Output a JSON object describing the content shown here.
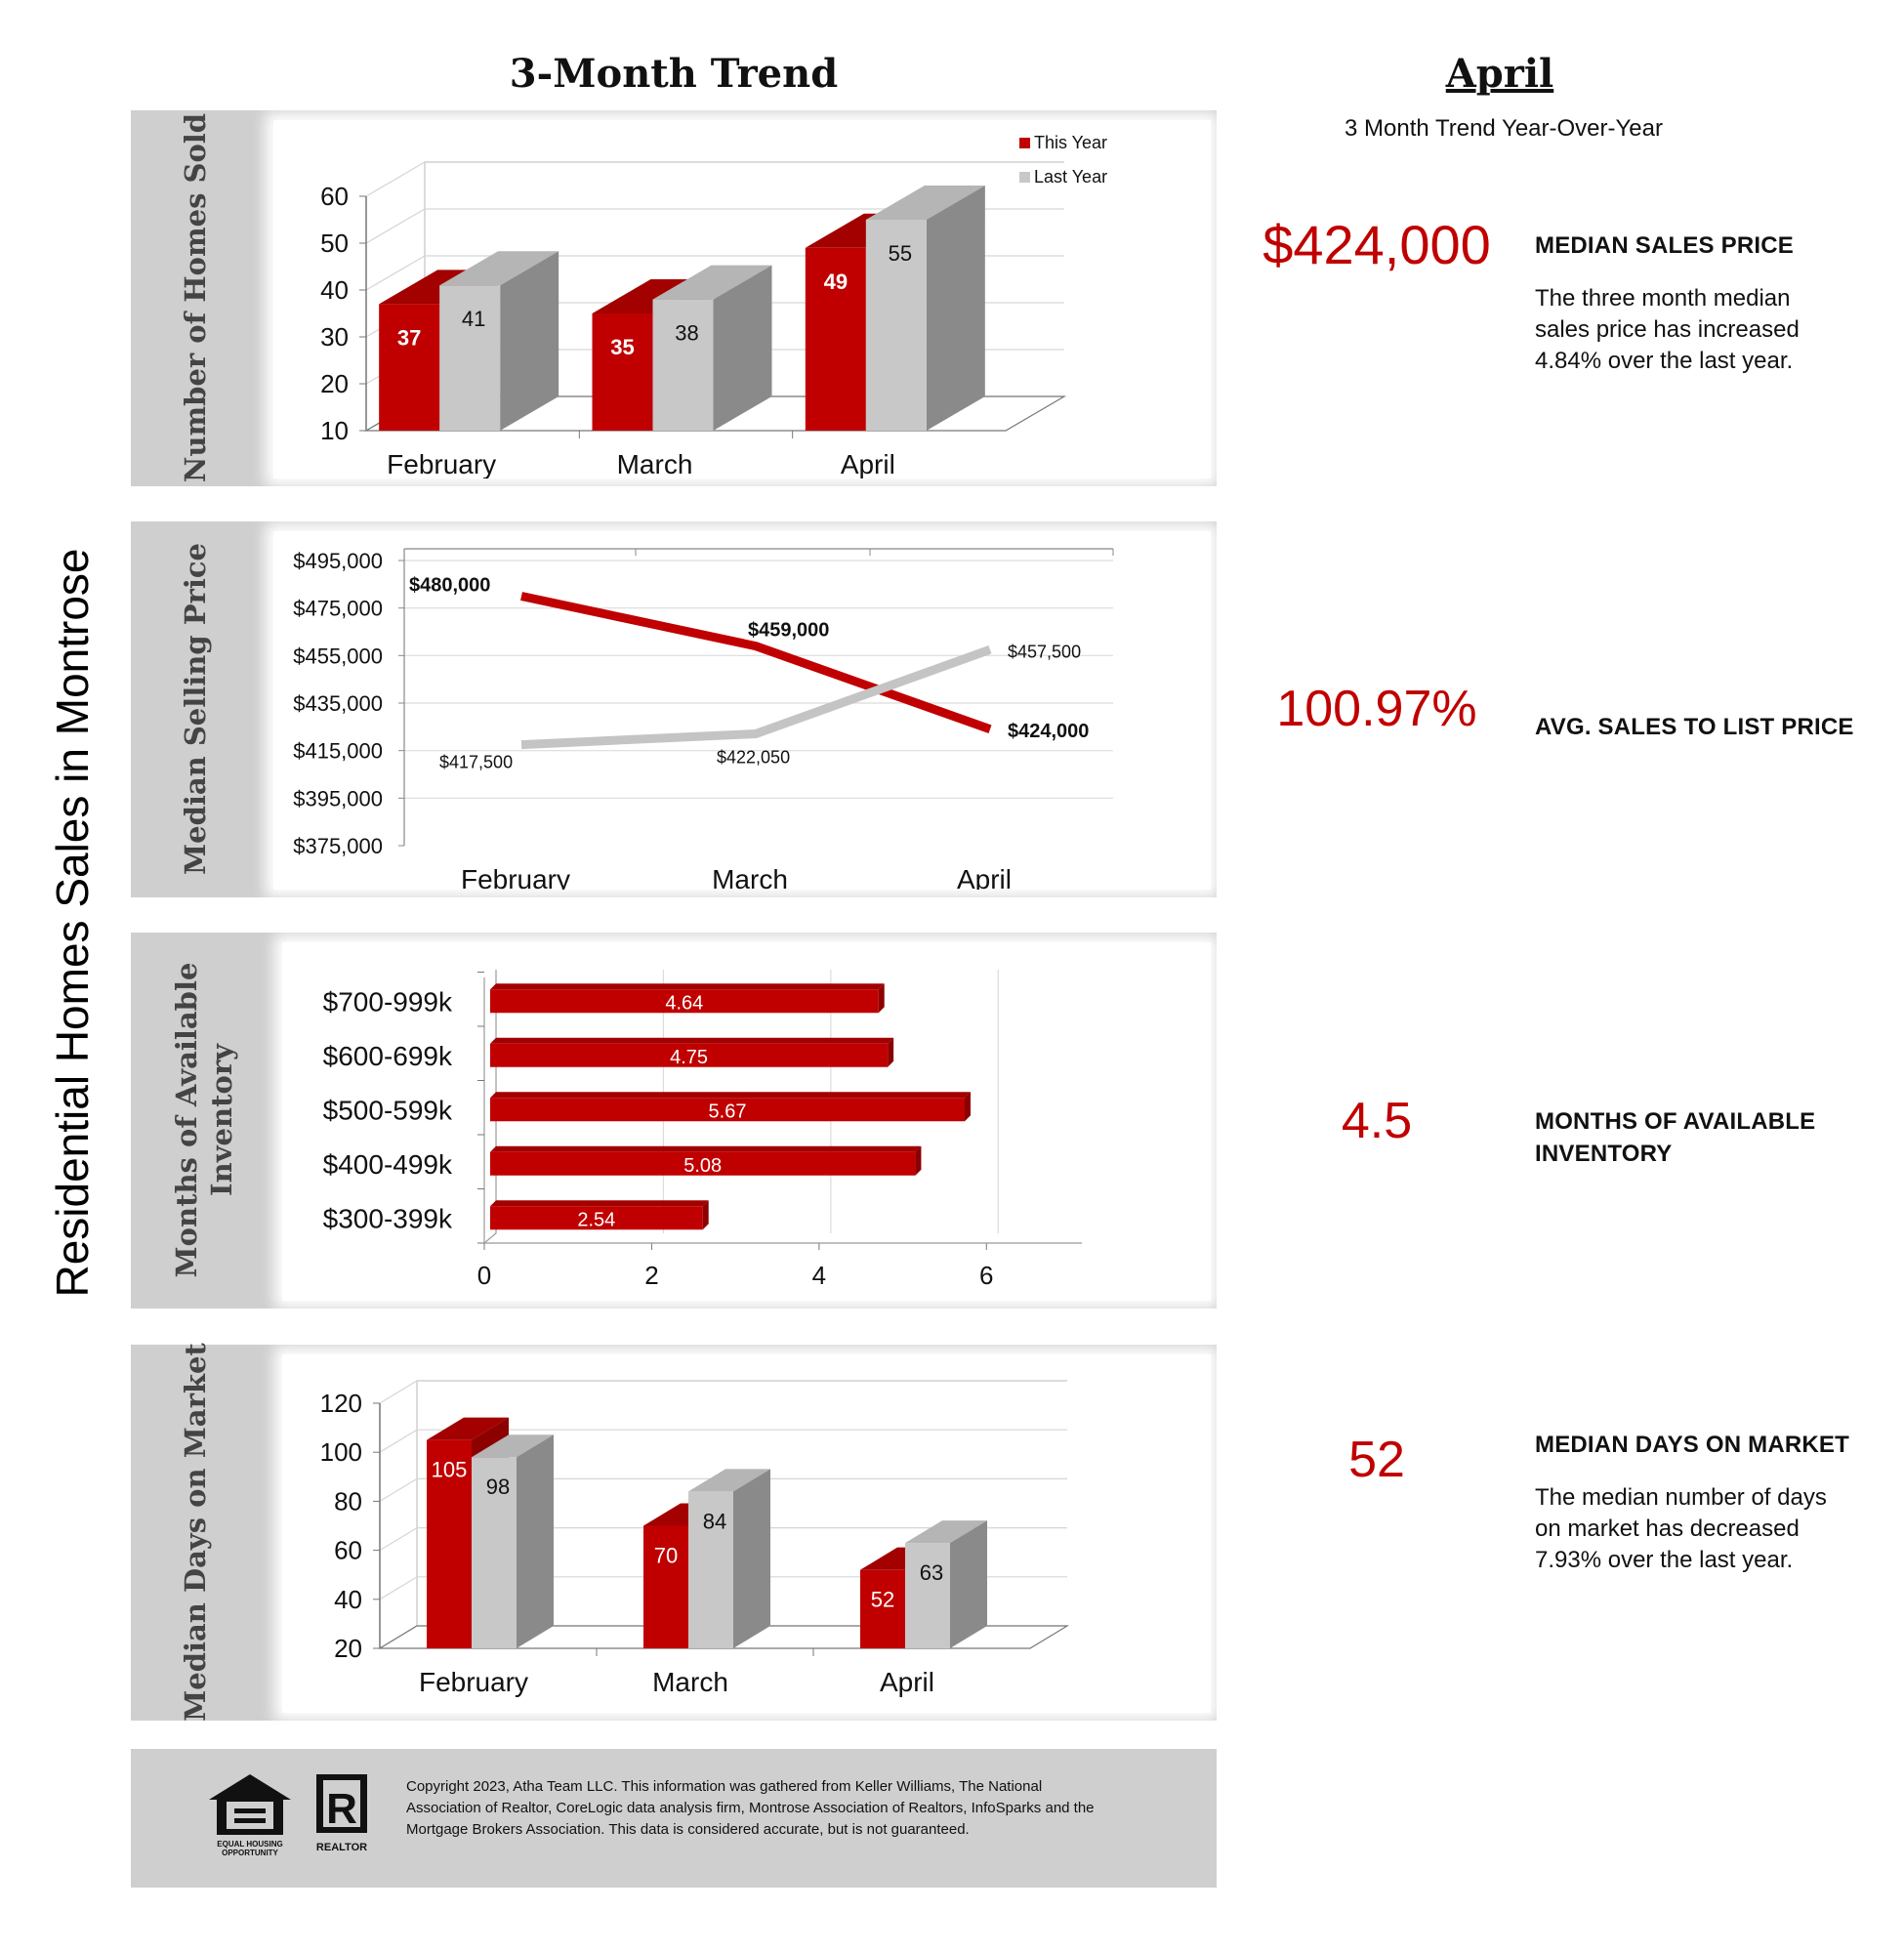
{
  "header": {
    "trend_title": "3-Month Trend",
    "month_title": "April",
    "month_subtitle": "3 Month Trend Year-Over-Year"
  },
  "side_title": "Residential Homes Sales in Montrose",
  "colors": {
    "this_year": "#c00000",
    "last_year": "#c8c8c8",
    "panel": "#cfcfcf"
  },
  "chart_data": [
    {
      "type": "bar",
      "ylabel": "Number of Homes Sold",
      "categories": [
        "February",
        "March",
        "April"
      ],
      "ylim": [
        10,
        60
      ],
      "yticks": [
        10,
        20,
        30,
        40,
        50,
        60
      ],
      "legend": "top-right",
      "series": [
        {
          "name": "This Year",
          "values": [
            37,
            35,
            49
          ]
        },
        {
          "name": "Last Year",
          "values": [
            41,
            38,
            55
          ]
        }
      ]
    },
    {
      "type": "line",
      "ylabel": "Median Selling Price",
      "categories": [
        "February",
        "March",
        "April"
      ],
      "ylim": [
        375000,
        495000
      ],
      "yticks": [
        "$375,000",
        "$395,000",
        "$415,000",
        "$435,000",
        "$455,000",
        "$475,000",
        "$495,000"
      ],
      "series": [
        {
          "values": [
            480000,
            459000,
            424000
          ],
          "labels": [
            "$480,000",
            "$459,000",
            "$424,000"
          ]
        },
        {
          "values": [
            417500,
            422050,
            457500
          ],
          "labels": [
            "$417,500",
            "$422,050",
            "$457,500"
          ]
        }
      ]
    },
    {
      "type": "bar",
      "orientation": "horizontal",
      "ylabel": "Months of Available Inventory",
      "categories": [
        "$300-399k",
        "$400-499k",
        "$500-599k",
        "$600-699k",
        "$700-999k"
      ],
      "values": [
        2.54,
        5.08,
        5.67,
        4.75,
        4.64
      ],
      "xlim": [
        0,
        7
      ],
      "xticks": [
        0,
        2,
        4,
        6
      ]
    },
    {
      "type": "bar",
      "ylabel": "Median Days on Market",
      "categories": [
        "February",
        "March",
        "April"
      ],
      "ylim": [
        20,
        120
      ],
      "yticks": [
        20,
        40,
        60,
        80,
        100,
        120
      ],
      "series": [
        {
          "values": [
            105,
            70,
            52
          ]
        },
        {
          "values": [
            98,
            84,
            63
          ]
        }
      ]
    }
  ],
  "kpis": {
    "median_price": {
      "value": "$424,000",
      "label": "MEDIAN SALES PRICE",
      "desc": [
        "The three month median",
        "sales price has increased",
        "4.84% over the last year."
      ]
    },
    "sales_to_list": {
      "value": "100.97%",
      "label": "AVG. SALES TO LIST PRICE"
    },
    "inventory": {
      "value": "4.5",
      "label": [
        "MONTHS OF AVAILABLE",
        "INVENTORY"
      ]
    },
    "days_on_market": {
      "value": "52",
      "label": "MEDIAN DAYS ON MARKET",
      "desc": [
        "The median number of days",
        "on market has decreased",
        "7.93% over the last year."
      ]
    }
  },
  "footer": {
    "copyright": [
      "Copyright 2023, Atha Team LLC. This information was gathered from Keller Williams, The National",
      "Association of Realtor, CoreLogic data analysis firm, Montrose Association of Realtors, InfoSparks and the",
      "Mortgage Brokers Association.  This data is considered accurate, but is not guaranteed."
    ],
    "eho_text": [
      "EQUAL HOUSING",
      "OPPORTUNITY"
    ],
    "realtor_text": "REALTOR"
  }
}
